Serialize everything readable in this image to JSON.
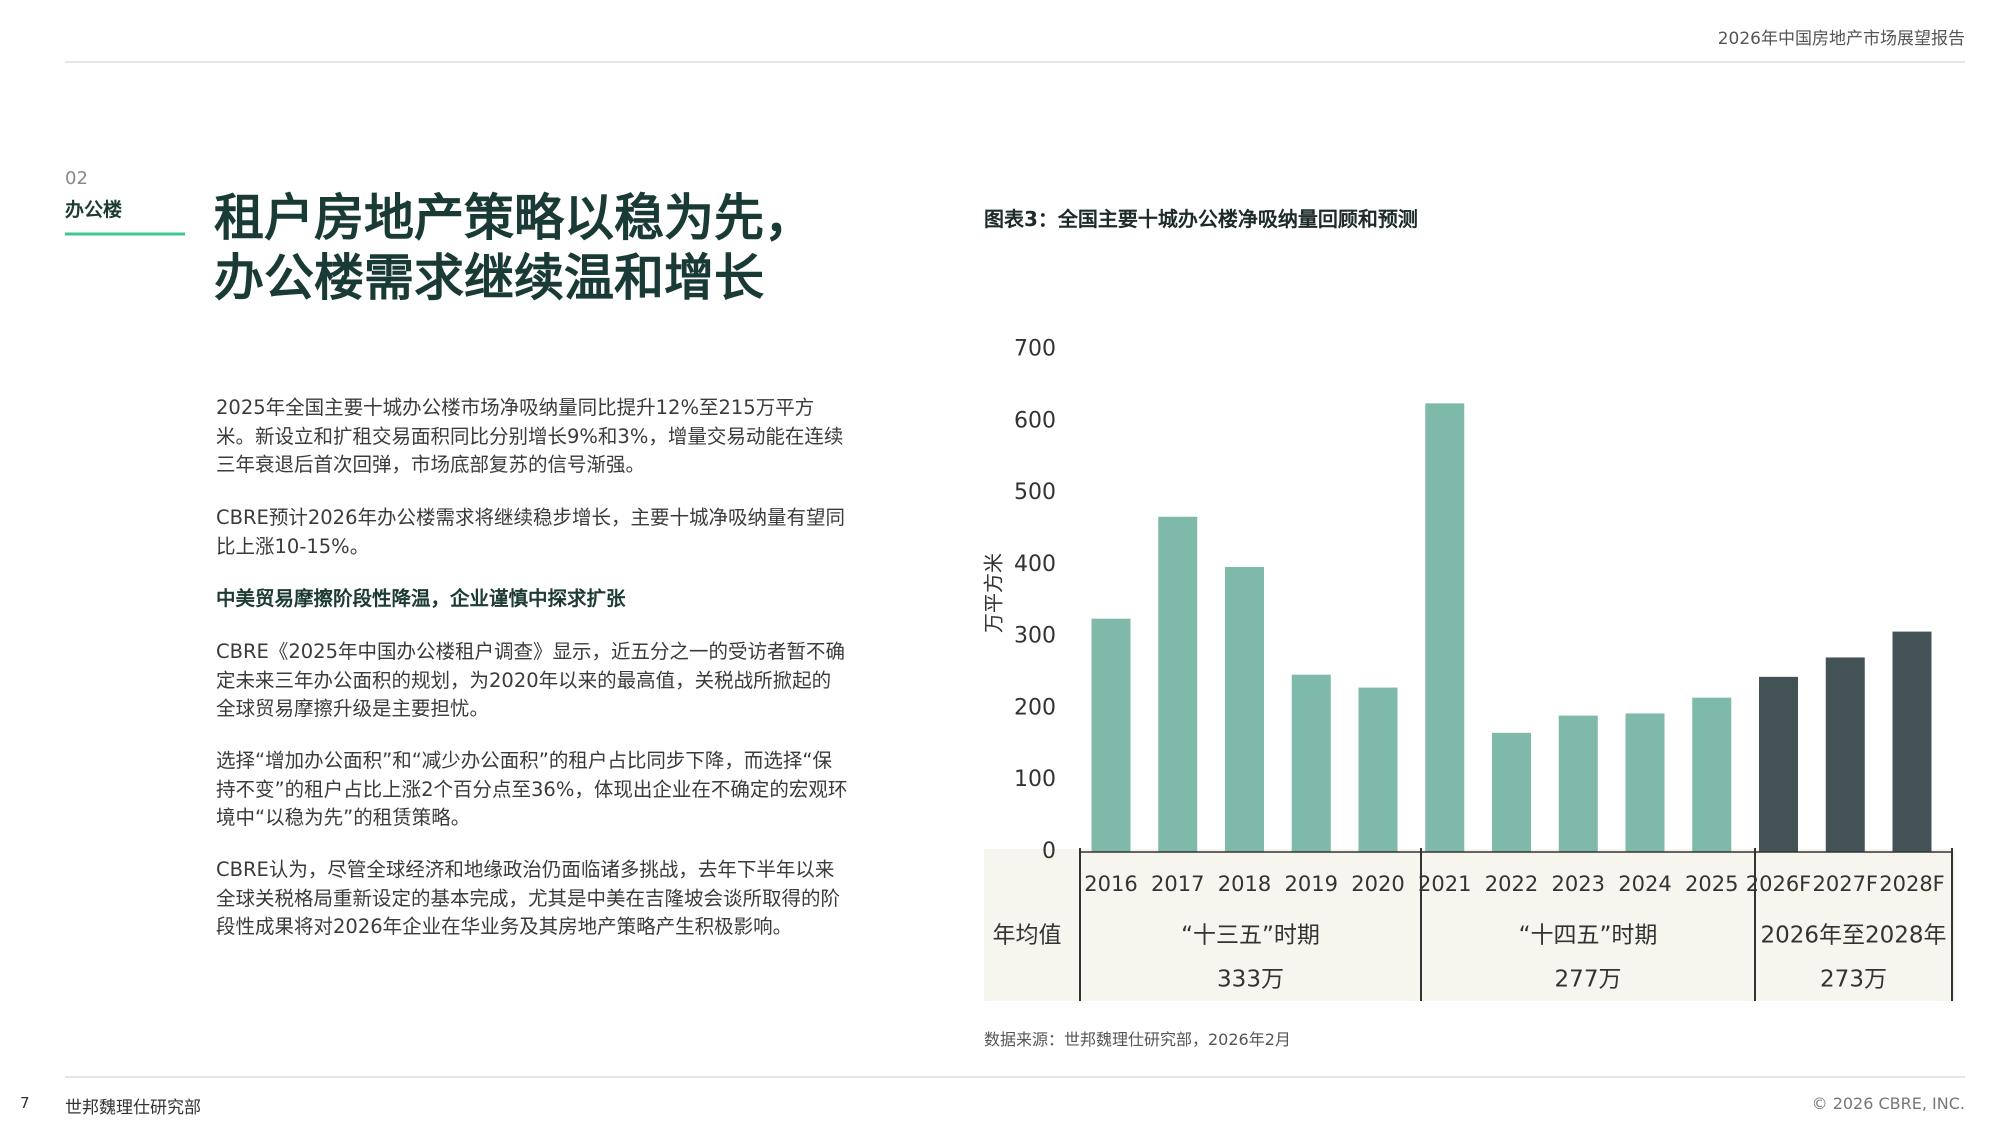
{
  "header": {
    "report_title": "2026年中国房地产市场展望报告"
  },
  "section": {
    "number": "02",
    "name": "办公楼"
  },
  "title": [
    "租户房地产策略以稳为先，",
    "办公楼需求继续温和增长"
  ],
  "body": [
    "2025年全国主要十城办公楼市场净吸纳量同比提升12%至215万平方米。新设立和扩租交易面积同比分别增长9%和3%，增量交易动能在连续三年衰退后首次回弹，市场底部复苏的信号渐强。",
    "CBRE预计2026年办公楼需求将继续稳步增长，主要十城净吸纳量有望同比上涨10-15%。",
    "CBRE《2025年中国办公楼租户调查》显示，近五分之一的受访者暂不确定未来三年办公面积的规划，为2020年以来的最高值，关税战所掀起的全球贸易摩擦升级是主要担忧。",
    "选择“增加办公面积”和“减少办公面积”的租户占比同步下降，而选择“保持不变”的租户占比上涨2个百分点至36%，体现出企业在不确定的宏观环境中“以稳为先”的租赁策略。",
    "CBRE认为，尽管全球经济和地缘政治仍面临诸多挑战，去年下半年以来全球关税格局重新设定的基本完成，尤其是中美在吉隆坡会谈所取得的阶段性成果将对2026年企业在华业务及其房地产策略产生积极影响。"
  ],
  "subheading": "中美贸易摩擦阶段性降温，企业谨慎中探求扩张",
  "chart_data": {
    "type": "bar",
    "title": "图表3：全国主要十城办公楼净吸纳量回顾和预测",
    "y_label": "万平方米",
    "categories": [
      "2016",
      "2017",
      "2018",
      "2019",
      "2020",
      "2021",
      "2022",
      "2023",
      "2024",
      "2025",
      "2026F",
      "2027F",
      "2028F"
    ],
    "values": [
      325,
      467,
      397,
      247,
      229,
      625,
      166,
      190,
      193,
      215,
      244,
      271,
      307
    ],
    "colors": [
      "#7fb9aa",
      "#7fb9aa",
      "#7fb9aa",
      "#7fb9aa",
      "#7fb9aa",
      "#7fb9aa",
      "#7fb9aa",
      "#7fb9aa",
      "#7fb9aa",
      "#7fb9aa",
      "#435254",
      "#435254",
      "#435254"
    ],
    "ylim": [
      0,
      700
    ],
    "yticks": [
      0,
      100,
      200,
      300,
      400,
      500,
      600,
      700
    ],
    "grid": false,
    "period_label": "年均值",
    "periods": [
      {
        "name": "“十三五”时期",
        "average": "333万"
      },
      {
        "name": "“十四五”时期",
        "average": "277万"
      },
      {
        "name": "2026年至2028年",
        "average": "273万"
      }
    ],
    "source": "数据来源：世邦魏理仕研究部，2026年2月"
  },
  "footer": {
    "page": "7",
    "publisher": "世邦魏理仕研究部",
    "copyright": "© 2026 CBRE, INC."
  }
}
